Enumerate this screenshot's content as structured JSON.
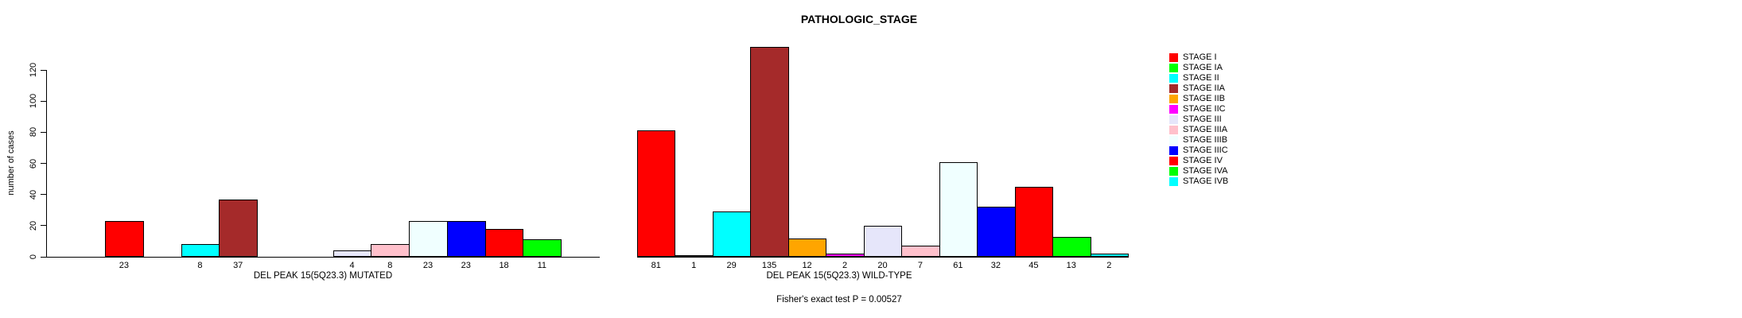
{
  "chart_data": {
    "type": "bar",
    "title": "PATHOLOGIC_STAGE",
    "ylabel": "number of cases",
    "ylim": [
      0,
      120
    ],
    "yticks": [
      0,
      20,
      40,
      60,
      80,
      100,
      120
    ],
    "grid": false,
    "legend_position": "right",
    "categories": [
      "STAGE I",
      "STAGE IA",
      "STAGE II",
      "STAGE IIA",
      "STAGE IIB",
      "STAGE IIC",
      "STAGE III",
      "STAGE IIIA",
      "STAGE IIIB",
      "STAGE IIIC",
      "STAGE IV",
      "STAGE IVA",
      "STAGE IVB"
    ],
    "colors": [
      "#FF0000",
      "#00FF00",
      "#00FFFF",
      "#A52A2A",
      "#FFA500",
      "#FF00FF",
      "#E6E6FA",
      "#FFC0CB",
      "#F0FFFF",
      "#0000FF",
      "#FF0000",
      "#00FF00",
      "#00FFFF"
    ],
    "series": [
      {
        "name": "DEL PEAK 15(5Q23.3) MUTATED",
        "values": [
          23,
          0,
          8,
          37,
          0,
          0,
          4,
          8,
          23,
          23,
          18,
          11,
          0
        ],
        "bar_labels": [
          "23",
          "",
          "8",
          "37",
          "",
          "",
          "4",
          "8",
          "23",
          "23",
          "18",
          "11",
          ""
        ]
      },
      {
        "name": "DEL PEAK 15(5Q23.3) WILD-TYPE",
        "values": [
          81,
          1,
          29,
          135,
          12,
          2,
          20,
          7,
          61,
          32,
          45,
          13,
          2
        ],
        "bar_labels": [
          "81",
          "1",
          "29",
          "135",
          "12",
          "2",
          "20",
          "7",
          "61",
          "32",
          "45",
          "13",
          "2"
        ]
      }
    ],
    "subtitle": "Fisher's exact test P = 0.00527"
  }
}
